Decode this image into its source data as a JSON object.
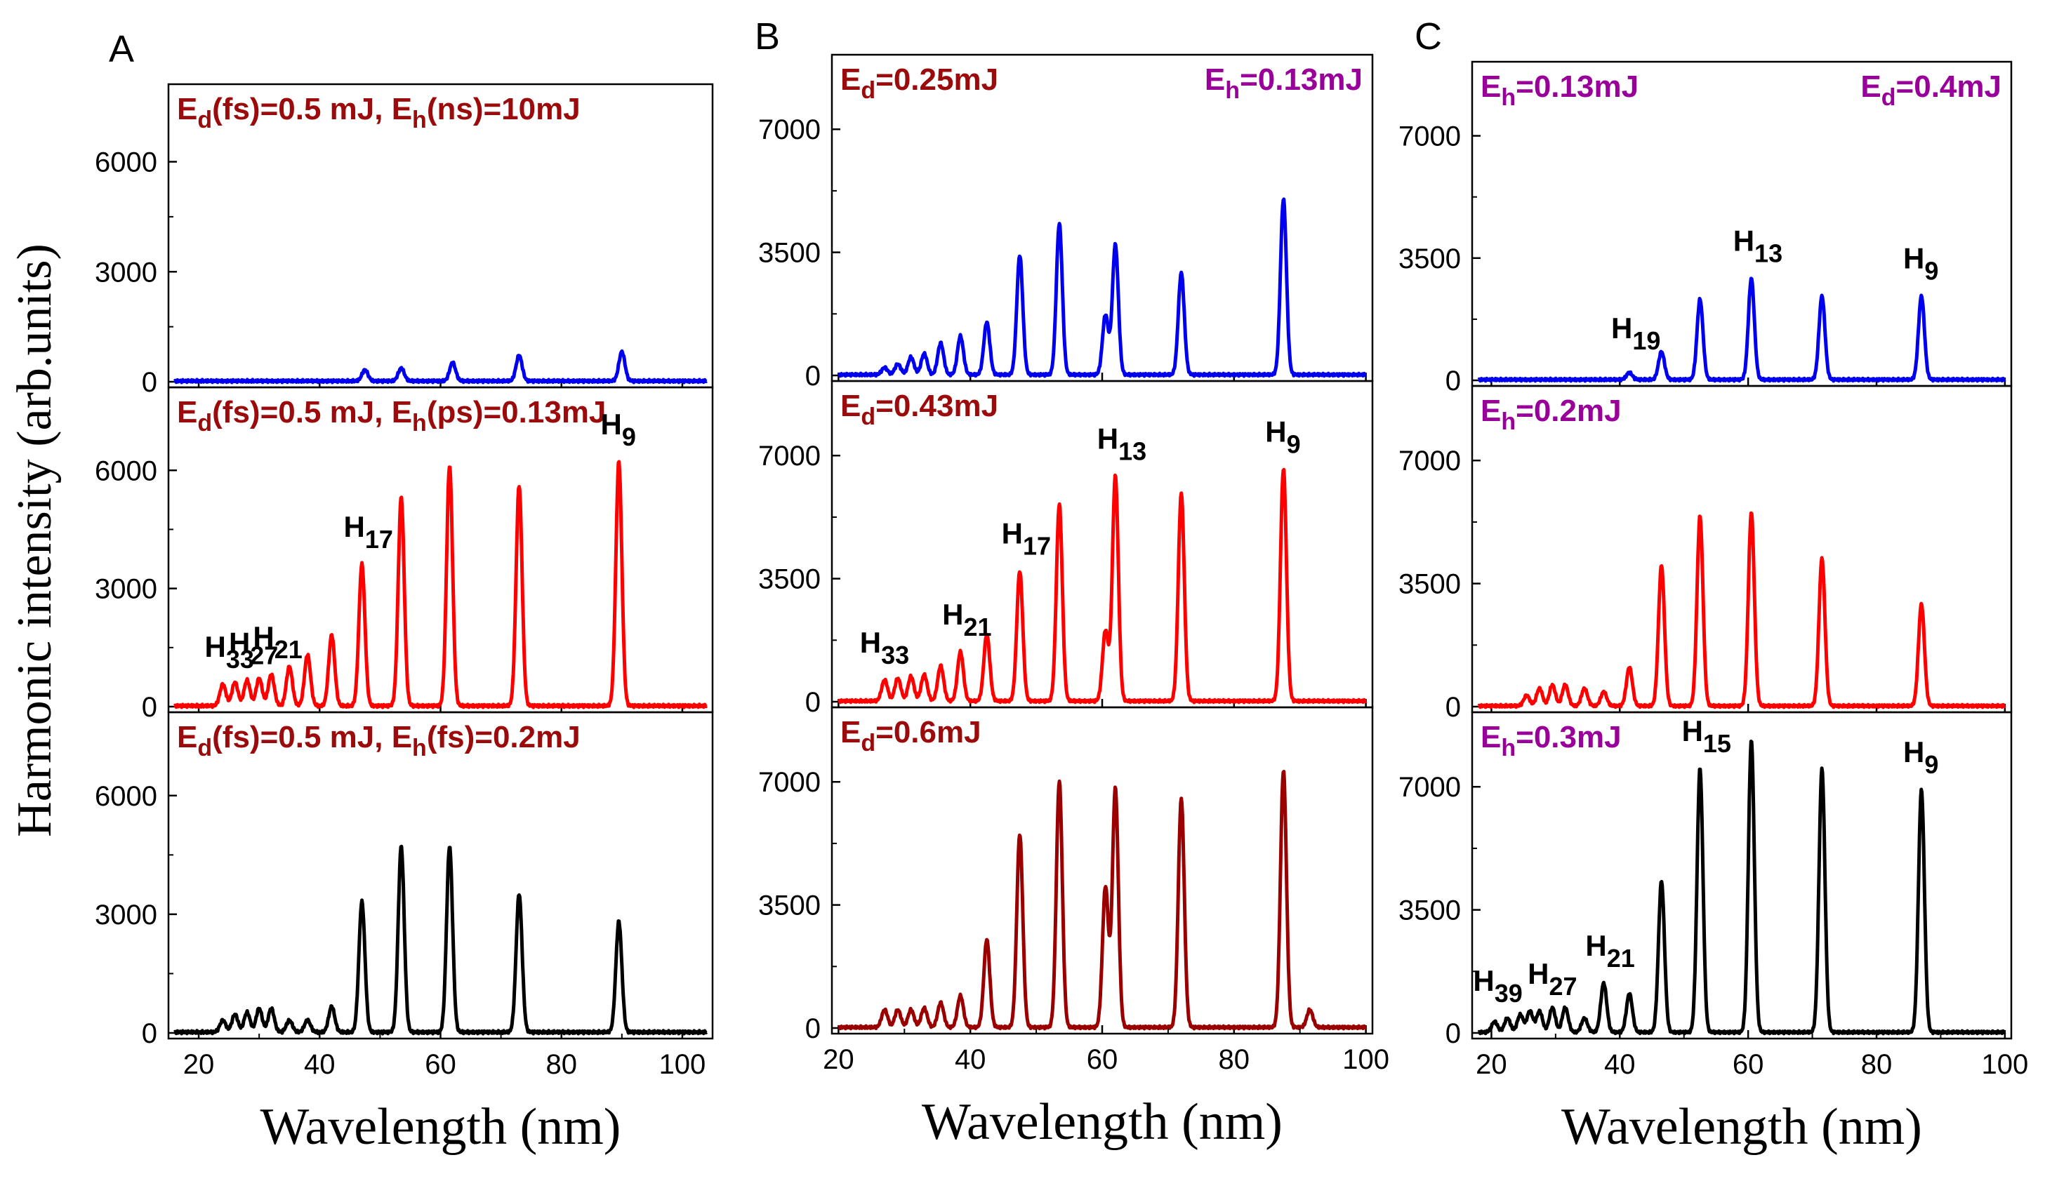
{
  "y_axis_label": "Harmonic intensity (arb.units)",
  "colors": {
    "blue": "#0000ee",
    "red": "#ff0000",
    "black": "#000000",
    "darkred": "#9b0000",
    "text_darkred": "#9b0b0b",
    "text_purple": "#990099"
  },
  "chart_data": [
    {
      "id": "A",
      "panel_letter": "A",
      "type": "line",
      "xlabel": "Wavelength (nm)",
      "ylabel": "Harmonic intensity (arb.units)",
      "xlim": [
        15,
        105
      ],
      "xticks": [
        20,
        40,
        60,
        80,
        100
      ],
      "subplots": [
        {
          "ylim": [
            0,
            8000
          ],
          "yticks": [
            0,
            3000,
            6000
          ],
          "color": "blue",
          "labels": [
            {
              "text": "E_d(fs)=0.5 mJ, E_h(ns)=10mJ",
              "color": "darkred",
              "align": "left"
            }
          ],
          "peaks": [
            [
              47.5,
              300
            ],
            [
              53.5,
              350
            ],
            [
              62,
              500
            ],
            [
              73,
              700
            ],
            [
              90,
              800
            ]
          ],
          "annotations": []
        },
        {
          "ylim": [
            0,
            8000
          ],
          "yticks": [
            0,
            3000,
            6000
          ],
          "color": "red",
          "labels": [
            {
              "text": "E_d(fs)=0.5 mJ, E_h(ps)=0.13mJ",
              "color": "darkred",
              "align": "left"
            }
          ],
          "peaks": [
            [
              24,
              550
            ],
            [
              26,
              600
            ],
            [
              28,
              650
            ],
            [
              30,
              700
            ],
            [
              32,
              800
            ],
            [
              35,
              1000
            ],
            [
              38,
              1300
            ],
            [
              42,
              1800
            ],
            [
              47,
              3600
            ],
            [
              53.5,
              5300
            ],
            [
              61.5,
              6100
            ],
            [
              73,
              5600
            ],
            [
              89.5,
              6200
            ]
          ],
          "annotations": [
            {
              "label": "H",
              "sub": "33",
              "x": 24
            },
            {
              "label": "H",
              "sub": "27",
              "x": 28
            },
            {
              "label": "H",
              "sub": "21",
              "x": 32
            },
            {
              "label": "H",
              "sub": "17",
              "x": 47
            },
            {
              "label": "H",
              "sub": "9",
              "x": 89.5
            }
          ]
        },
        {
          "ylim": [
            0,
            8000
          ],
          "yticks": [
            0,
            3000,
            6000
          ],
          "color": "black",
          "labels": [
            {
              "text": "E_d(fs)=0.5 mJ, E_h(fs)=0.2mJ",
              "color": "darkred",
              "align": "left"
            }
          ],
          "peaks": [
            [
              24,
              300
            ],
            [
              26,
              450
            ],
            [
              28,
              500
            ],
            [
              30,
              600
            ],
            [
              32,
              600
            ],
            [
              35,
              300
            ],
            [
              38,
              300
            ],
            [
              42,
              650
            ],
            [
              47,
              3300
            ],
            [
              53.5,
              4700
            ],
            [
              61.5,
              4700
            ],
            [
              73,
              3500
            ],
            [
              89.5,
              2800
            ]
          ],
          "annotations": []
        }
      ]
    },
    {
      "id": "B",
      "panel_letter": "B",
      "type": "line",
      "xlabel": "Wavelength (nm)",
      "xlim": [
        19,
        101
      ],
      "xticks": [
        20,
        40,
        60,
        80,
        100
      ],
      "subplots": [
        {
          "ylim": [
            0,
            9000
          ],
          "yticks": [
            0,
            3500,
            7000
          ],
          "color": "blue",
          "labels": [
            {
              "text": "E_d=0.25mJ",
              "color": "darkred",
              "align": "left"
            },
            {
              "text": "E_h=0.13mJ",
              "color": "purple",
              "align": "right"
            }
          ],
          "peaks": [
            [
              27,
              200
            ],
            [
              29,
              300
            ],
            [
              31,
              500
            ],
            [
              33,
              600
            ],
            [
              35.5,
              900
            ],
            [
              38.5,
              1100
            ],
            [
              42.5,
              1500
            ],
            [
              47.5,
              3400
            ],
            [
              53.5,
              4300
            ],
            [
              60.5,
              1700
            ],
            [
              62,
              3700
            ],
            [
              72,
              2900
            ],
            [
              87.5,
              5000
            ]
          ],
          "annotations": []
        },
        {
          "ylim": [
            0,
            9000
          ],
          "yticks": [
            0,
            3500,
            7000
          ],
          "color": "red",
          "labels": [
            {
              "text": "E_d=0.43mJ",
              "color": "darkred",
              "align": "left"
            }
          ],
          "peaks": [
            [
              27,
              600
            ],
            [
              29,
              650
            ],
            [
              31,
              700
            ],
            [
              33,
              750
            ],
            [
              35.5,
              1000
            ],
            [
              38.5,
              1400
            ],
            [
              42.5,
              1900
            ],
            [
              47.5,
              3700
            ],
            [
              53.5,
              5600
            ],
            [
              60.5,
              2000
            ],
            [
              62,
              6400
            ],
            [
              72,
              5900
            ],
            [
              87.5,
              6600
            ]
          ],
          "annotations": [
            {
              "label": "H",
              "sub": "33",
              "x": 26
            },
            {
              "label": "H",
              "sub": "21",
              "x": 38.5
            },
            {
              "label": "H",
              "sub": "17",
              "x": 47.5
            },
            {
              "label": "H",
              "sub": "13",
              "x": 62
            },
            {
              "label": "H",
              "sub": "9",
              "x": 87.5
            }
          ]
        },
        {
          "ylim": [
            0,
            9000
          ],
          "yticks": [
            0,
            3500,
            7000
          ],
          "color": "darkred",
          "labels": [
            {
              "text": "E_d=0.6mJ",
              "color": "darkred",
              "align": "left"
            }
          ],
          "peaks": [
            [
              27,
              500
            ],
            [
              29,
              500
            ],
            [
              31,
              500
            ],
            [
              33,
              550
            ],
            [
              35.5,
              700
            ],
            [
              38.5,
              900
            ],
            [
              42.5,
              2500
            ],
            [
              47.5,
              5500
            ],
            [
              53.5,
              7000
            ],
            [
              60.5,
              4000
            ],
            [
              62,
              6800
            ],
            [
              72,
              6500
            ],
            [
              87.5,
              7300
            ],
            [
              91.5,
              500
            ]
          ],
          "annotations": []
        }
      ]
    },
    {
      "id": "C",
      "panel_letter": "C",
      "type": "line",
      "xlabel": "Wavelength (nm)",
      "xlim": [
        17,
        101
      ],
      "xticks": [
        20,
        40,
        60,
        80,
        100
      ],
      "subplots": [
        {
          "ylim": [
            0,
            9000
          ],
          "yticks": [
            0,
            3500,
            7000
          ],
          "color": "blue",
          "labels": [
            {
              "text": "E_h=0.13mJ",
              "color": "purple",
              "align": "left"
            },
            {
              "text": "E_d=0.4mJ",
              "color": "purple",
              "align": "right"
            }
          ],
          "peaks": [
            [
              41.5,
              200
            ],
            [
              46.5,
              800
            ],
            [
              52.5,
              2300
            ],
            [
              60.5,
              2900
            ],
            [
              71.5,
              2400
            ],
            [
              87,
              2400
            ]
          ],
          "annotations": [
            {
              "label": "H",
              "sub": "19",
              "x": 41.5
            },
            {
              "label": "H",
              "sub": "13",
              "x": 60.5
            },
            {
              "label": "H",
              "sub": "9",
              "x": 87
            }
          ]
        },
        {
          "ylim": [
            0,
            9000
          ],
          "yticks": [
            0,
            3500,
            7000
          ],
          "color": "red",
          "labels": [
            {
              "text": "E_h=0.2mJ",
              "color": "purple",
              "align": "left"
            }
          ],
          "peaks": [
            [
              25.5,
              300
            ],
            [
              27.5,
              500
            ],
            [
              29.5,
              600
            ],
            [
              31.5,
              600
            ],
            [
              34.5,
              500
            ],
            [
              37.5,
              400
            ],
            [
              41.5,
              1100
            ],
            [
              46.5,
              4000
            ],
            [
              52.5,
              5400
            ],
            [
              60.5,
              5500
            ],
            [
              71.5,
              4200
            ],
            [
              87,
              2900
            ]
          ],
          "annotations": []
        },
        {
          "ylim": [
            0,
            9000
          ],
          "yticks": [
            0,
            3500,
            7000
          ],
          "color": "black",
          "labels": [
            {
              "text": "E_h=0.3mJ",
              "color": "purple",
              "align": "left"
            }
          ],
          "peaks": [
            [
              20.5,
              300
            ],
            [
              22.5,
              400
            ],
            [
              24.5,
              500
            ],
            [
              26,
              600
            ],
            [
              27.5,
              600
            ],
            [
              29.5,
              700
            ],
            [
              31.5,
              700
            ],
            [
              34.5,
              400
            ],
            [
              37.5,
              1400
            ],
            [
              41.5,
              1100
            ],
            [
              46.5,
              4300
            ],
            [
              52.5,
              7500
            ],
            [
              60.5,
              8300
            ],
            [
              71.5,
              7500
            ],
            [
              87,
              6900
            ]
          ],
          "annotations": [
            {
              "label": "H",
              "sub": "39",
              "x": 20
            },
            {
              "label": "H",
              "sub": "27",
              "x": 28.5
            },
            {
              "label": "H",
              "sub": "21",
              "x": 37.5
            },
            {
              "label": "H",
              "sub": "15",
              "x": 52.5
            },
            {
              "label": "H",
              "sub": "9",
              "x": 87
            }
          ]
        }
      ]
    }
  ]
}
